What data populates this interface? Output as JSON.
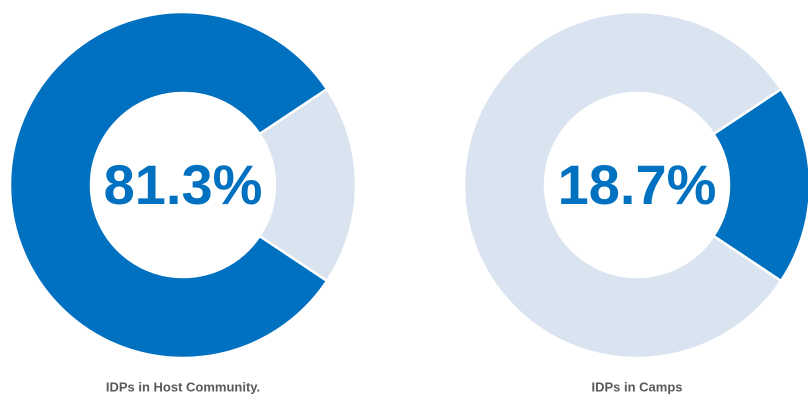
{
  "chart_data": [
    {
      "type": "pie",
      "title": "IDPs in Host Community.",
      "values": [
        81.3,
        18.7
      ],
      "value_labels": [
        "81.3%",
        null
      ],
      "colors": [
        "#0070c0",
        "#dae3f0"
      ]
    },
    {
      "type": "pie",
      "title": "IDPs in Camps",
      "values": [
        18.7,
        81.3
      ],
      "value_labels": [
        "18.7%",
        null
      ],
      "colors": [
        "#0070c0",
        "#dae3f0"
      ]
    }
  ]
}
